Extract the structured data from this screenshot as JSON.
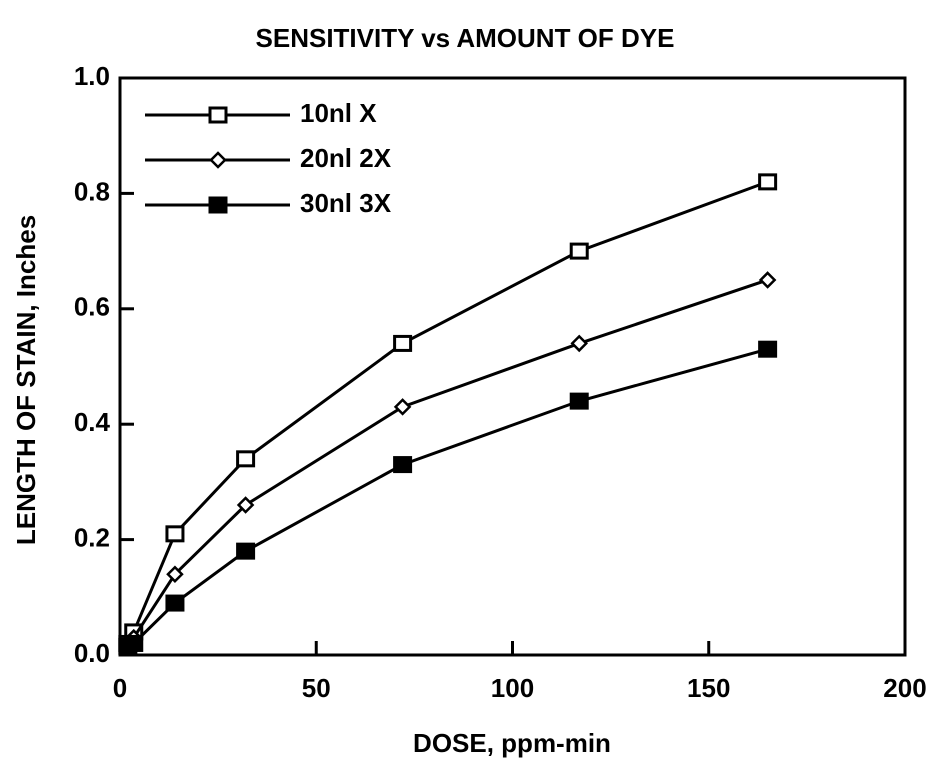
{
  "chart_data": {
    "type": "line",
    "title": "SENSITIVITY vs AMOUNT OF DYE",
    "x_label": "DOSE, ppm-min",
    "y_label": "LENGTH OF STAIN, Inches",
    "x": [
      2,
      3.5,
      14,
      32,
      72,
      117,
      165
    ],
    "series": [
      {
        "name": "10nl  X",
        "color": "#000000",
        "marker": "square-open",
        "values": [
          0.02,
          0.04,
          0.21,
          0.34,
          0.54,
          0.7,
          0.82
        ]
      },
      {
        "name": "20nl 2X",
        "color": "#000000",
        "marker": "diamond-open",
        "values": [
          0.02,
          0.03,
          0.14,
          0.26,
          0.43,
          0.54,
          0.65
        ]
      },
      {
        "name": "30nl 3X",
        "color": "#000000",
        "marker": "square-filled",
        "values": [
          0.015,
          0.02,
          0.09,
          0.18,
          0.33,
          0.44,
          0.53
        ]
      }
    ],
    "xlim": [
      0,
      200
    ],
    "xticks": [
      0,
      50,
      100,
      150,
      200
    ],
    "ylim": [
      0,
      1
    ],
    "yticks": [
      {
        "value": 0,
        "label": "0.0"
      },
      0.2,
      0.4,
      0.6,
      0.8,
      {
        "value": 1,
        "label": "1.0"
      }
    ],
    "legend": "upper left"
  }
}
